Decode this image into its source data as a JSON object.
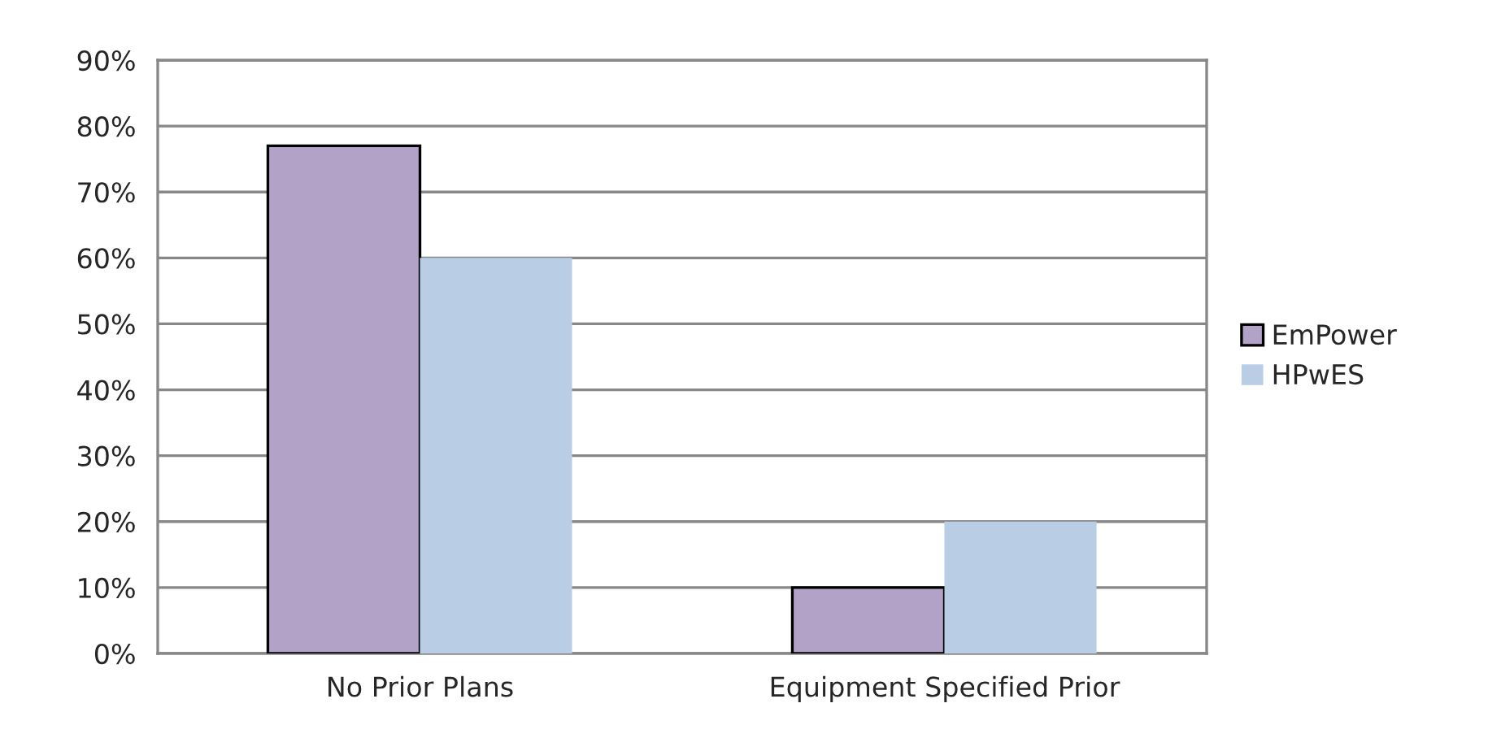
{
  "chart_data": {
    "type": "bar",
    "categories": [
      "No Prior Plans",
      "Equipment Specified Prior"
    ],
    "series": [
      {
        "name": "EmPower",
        "color": "#b3a2c7",
        "values": [
          77,
          10
        ]
      },
      {
        "name": "HPwES",
        "color": "#b9cde5",
        "values": [
          60,
          20
        ]
      }
    ],
    "ylim": [
      0,
      90
    ],
    "yticks": [
      {
        "value": 0,
        "label": "0%"
      },
      {
        "value": 10,
        "label": "10%"
      },
      {
        "value": 20,
        "label": "20%"
      },
      {
        "value": 30,
        "label": "30%"
      },
      {
        "value": 40,
        "label": "40%"
      },
      {
        "value": 50,
        "label": "50%"
      },
      {
        "value": 60,
        "label": "60%"
      },
      {
        "value": 70,
        "label": "70%"
      },
      {
        "value": 80,
        "label": "80%"
      },
      {
        "value": 90,
        "label": "90%"
      }
    ],
    "grid": "y",
    "legend": "right"
  }
}
